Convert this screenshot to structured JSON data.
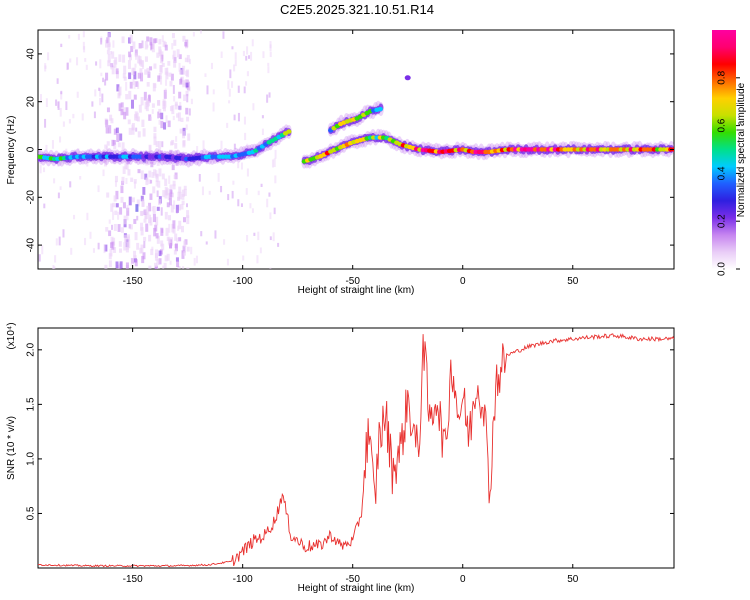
{
  "title": "C2E5.2025.321.10.51.R14",
  "chart_data": [
    {
      "type": "heatmap",
      "name": "spectrogram",
      "xlabel": "Height of straight line (km)",
      "ylabel": "Frequency (Hz)",
      "xlim": [
        -193,
        96
      ],
      "ylim": [
        -50,
        50
      ],
      "xticks": [
        -150,
        -100,
        -50,
        0,
        50
      ],
      "yticks": [
        -40,
        -20,
        0,
        20,
        40
      ],
      "colorbar": {
        "label": "Normalized spectral amplitude",
        "range": [
          0,
          1
        ],
        "ticks": [
          0.0,
          0.2,
          0.4,
          0.6,
          0.8
        ],
        "colors": [
          "#ffffff",
          "#e9ccf7",
          "#c685f0",
          "#7a2fe8",
          "#2f1fe0",
          "#1f5fff",
          "#00ccff",
          "#00e08a",
          "#33dd00",
          "#c8e000",
          "#ffd000",
          "#ff6a00",
          "#ff0000",
          "#ff0070",
          "#ff00a0"
        ]
      },
      "traces": [
        {
          "name": "main-band",
          "points": [
            [
              -193,
              -3,
              0.45
            ],
            [
              -185,
              -4,
              0.55
            ],
            [
              -175,
              -3,
              0.4
            ],
            [
              -165,
              -3,
              0.35
            ],
            [
              -155,
              -3,
              0.35
            ],
            [
              -145,
              -3,
              0.3
            ],
            [
              -135,
              -3,
              0.25
            ],
            [
              -125,
              -4,
              0.3
            ],
            [
              -115,
              -3,
              0.35
            ],
            [
              -105,
              -3,
              0.4
            ],
            [
              -95,
              -1,
              0.4
            ],
            [
              -88,
              3,
              0.45
            ],
            [
              -82,
              6,
              0.5
            ],
            [
              -78,
              8,
              0.5
            ]
          ]
        },
        {
          "name": "upper-branch",
          "points": [
            [
              -60,
              8,
              0.5
            ],
            [
              -55,
              11,
              0.6
            ],
            [
              -48,
              13,
              0.55
            ],
            [
              -42,
              16,
              0.5
            ],
            [
              -37,
              17,
              0.4
            ]
          ]
        },
        {
          "name": "lower-branch",
          "points": [
            [
              -72,
              -5,
              0.7
            ],
            [
              -65,
              -3,
              0.75
            ],
            [
              -58,
              0,
              0.7
            ],
            [
              -50,
              3,
              0.65
            ],
            [
              -42,
              5,
              0.6
            ],
            [
              -35,
              5,
              0.6
            ],
            [
              -28,
              2,
              0.7
            ],
            [
              -20,
              0,
              0.85
            ],
            [
              -10,
              -1,
              0.8
            ],
            [
              0,
              0,
              0.8
            ],
            [
              5,
              -1,
              0.85
            ],
            [
              12,
              -1,
              0.8
            ],
            [
              20,
              0,
              0.9
            ],
            [
              40,
              0,
              0.9
            ],
            [
              60,
              0,
              0.8
            ],
            [
              80,
              0,
              0.75
            ],
            [
              96,
              0,
              0.7
            ]
          ]
        },
        {
          "name": "outlier",
          "points": [
            [
              -25,
              30,
              0.2
            ]
          ]
        }
      ]
    },
    {
      "type": "line",
      "name": "snr",
      "xlabel": "Height of straight line (km)",
      "ylabel": "SNR (10 * v/v)",
      "multiplier": "(x10⁴)",
      "xlim": [
        -193,
        96
      ],
      "ylim": [
        0,
        2.2
      ],
      "xticks": [
        -150,
        -100,
        -50,
        0,
        50
      ],
      "yticks": [
        0.5,
        1.0,
        1.5,
        2.0
      ],
      "color": "#e8302e",
      "series": [
        {
          "name": "SNR",
          "x": [
            -193,
            -170,
            -150,
            -130,
            -115,
            -105,
            -100,
            -95,
            -90,
            -85,
            -82,
            -78,
            -72,
            -65,
            -60,
            -55,
            -50,
            -46,
            -43,
            -40,
            -38,
            -35,
            -32,
            -28,
            -25,
            -20,
            -18,
            -15,
            -12,
            -8,
            -5,
            -2,
            0,
            3,
            6,
            10,
            12,
            15,
            20,
            30,
            40,
            50,
            60,
            70,
            80,
            96
          ],
          "y": [
            0.03,
            0.02,
            0.02,
            0.02,
            0.03,
            0.06,
            0.15,
            0.25,
            0.3,
            0.45,
            0.68,
            0.3,
            0.2,
            0.2,
            0.3,
            0.2,
            0.25,
            0.5,
            1.3,
            0.6,
            1.2,
            1.4,
            0.9,
            1.1,
            1.55,
            1.0,
            2.13,
            1.3,
            1.6,
            1.05,
            1.9,
            1.4,
            1.55,
            1.2,
            1.7,
            1.5,
            0.63,
            1.7,
            1.95,
            2.03,
            2.08,
            2.1,
            2.12,
            2.13,
            2.1,
            2.1
          ]
        }
      ]
    }
  ]
}
